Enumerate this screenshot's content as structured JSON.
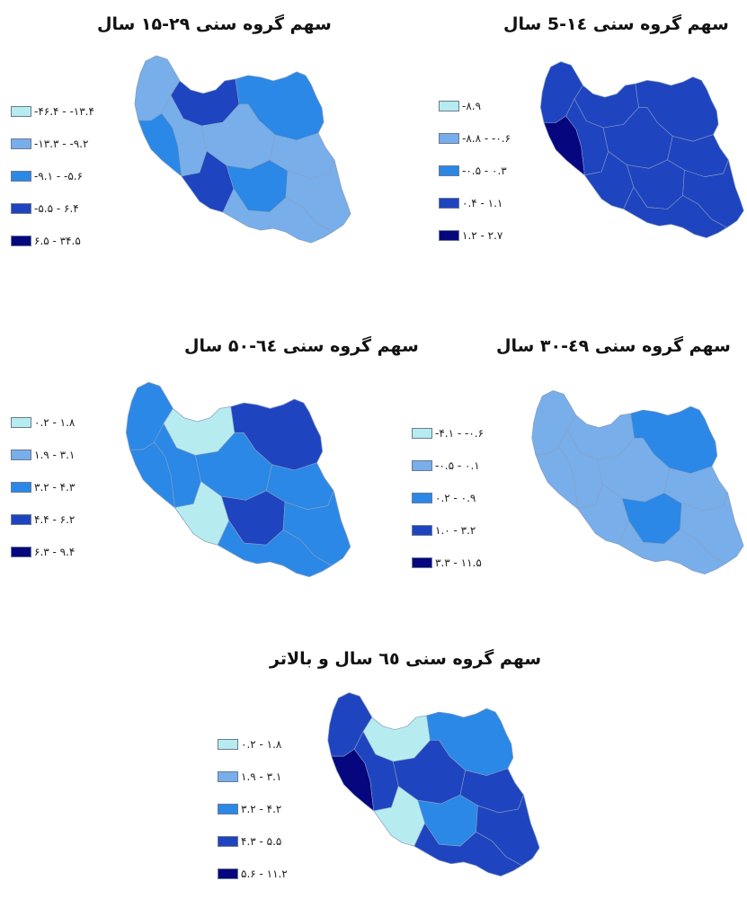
{
  "palette": [
    "#b6ecf0",
    "#78aeea",
    "#2b88e6",
    "#1f44c0",
    "#06067e"
  ],
  "border_color": "#8aa0c0",
  "panels": [
    {
      "title": "سهم گروه سنی ۲۹-۱۵ سال",
      "legend": [
        "-۴۶.۴ - -۱۳.۴",
        "-۱۳.۳ - -۹.۲",
        "-۹.۱ - -۵.۶",
        "-۵.۵ - ۶.۴",
        "۶.۵ - ۳۴.۵"
      ],
      "dominant_classes": [
        1,
        2,
        2,
        0,
        3
      ]
    },
    {
      "title": "سهم گروه سنی ۱٤-5 سال",
      "legend": [
        "-۸.۹",
        "-۸.۸ - -۰.۶",
        "-۰.۵ - ۰.۳",
        "۰.۴ - ۱.۱",
        "۱.۲ - ۲.۷"
      ],
      "dominant_classes": [
        3,
        3,
        4,
        2,
        3
      ]
    },
    {
      "title": "سهم گروه سنی ٦٤-۵۰ سال",
      "legend": [
        "۰.۲ - ۱.۸",
        "۱.۹ - ۳.۱",
        "۳.۲ - ۴.۳",
        "۴.۴ - ۶.۲",
        "۶.۳ - ۹.۴"
      ],
      "dominant_classes": [
        2,
        3,
        2,
        1,
        0
      ]
    },
    {
      "title": "سهم گروه سنی ٤۹-۳۰ سال",
      "legend": [
        "-۴.۱ - -۰.۶",
        "-۰.۵ - ۰.۱",
        "۰.۲ - ۰.۹",
        "۱.۰ - ۳.۲",
        "۳.۳ - ۱۱.۵"
      ],
      "dominant_classes": [
        1,
        2,
        1,
        2,
        1
      ]
    },
    {
      "title": "سهم گروه سنی ٦٥ سال و بالاتر",
      "legend": [
        "۰.۲ - ۱.۸",
        "۱.۹ - ۳.۱",
        "۳.۲ - ۴.۲",
        "۴.۳ - ۵.۵",
        "۵.۶ - ۱۱.۲"
      ],
      "dominant_classes": [
        3,
        2,
        4,
        1,
        0
      ]
    }
  ]
}
